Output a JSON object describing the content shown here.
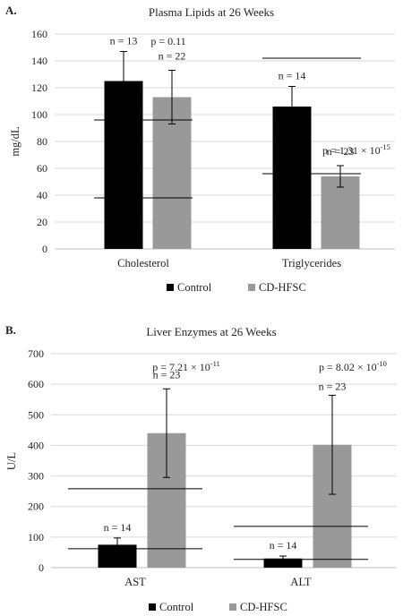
{
  "chart_data": [
    {
      "type": "bar",
      "panel_label": "A.",
      "title": "Plasma Lipids at 26 Weeks",
      "ylabel": "mg/dL",
      "ylim": [
        0,
        160
      ],
      "yticks": [
        "0",
        "20",
        "40",
        "60",
        "80",
        "100",
        "120",
        "140",
        "160"
      ],
      "categories": [
        "Cholesterol",
        "Triglycerides"
      ],
      "series": [
        {
          "name": "Control",
          "color": "#000000",
          "values": [
            125,
            106
          ],
          "error": [
            22,
            15
          ],
          "n_labels": [
            "n = 13",
            "n = 14"
          ]
        },
        {
          "name": "CD-HFSC",
          "color": "#999999",
          "values": [
            113,
            54
          ],
          "error": [
            20,
            8
          ],
          "n_labels": [
            "n = 22",
            "n = 23"
          ]
        }
      ],
      "p_values": [
        {
          "category": "Cholesterol",
          "text": "p = 0.11",
          "exp": ""
        },
        {
          "category": "Triglycerides",
          "text": "p = 1.31 × 10",
          "exp": "-15"
        }
      ],
      "reference_lines": [
        {
          "category": "Cholesterol",
          "values": [
            96,
            38
          ]
        },
        {
          "category": "Triglycerides",
          "values": [
            142,
            56
          ]
        }
      ],
      "legend": [
        "Control",
        "CD-HFSC"
      ],
      "legend_position": "bottom",
      "grid": true
    },
    {
      "type": "bar",
      "panel_label": "B.",
      "title": "Liver Enzymes at 26 Weeks",
      "ylabel": "U/L",
      "ylim": [
        0,
        700
      ],
      "yticks": [
        "0",
        "100",
        "200",
        "300",
        "400",
        "500",
        "600",
        "700"
      ],
      "categories": [
        "AST",
        "ALT"
      ],
      "series": [
        {
          "name": "Control",
          "color": "#000000",
          "values": [
            75,
            30
          ],
          "error": [
            22,
            8
          ],
          "n_labels": [
            "n = 14",
            "n = 14"
          ]
        },
        {
          "name": "CD-HFSC",
          "color": "#999999",
          "values": [
            440,
            402
          ],
          "error": [
            145,
            162
          ],
          "n_labels": [
            "n = 23",
            "n = 23"
          ]
        }
      ],
      "p_values": [
        {
          "category": "AST",
          "text": "p = 7.21 × 10",
          "exp": "-11"
        },
        {
          "category": "ALT",
          "text": "p = 8.02 × 10",
          "exp": "-10"
        }
      ],
      "reference_lines": [
        {
          "category": "AST",
          "values": [
            258,
            62
          ]
        },
        {
          "category": "ALT",
          "values": [
            135,
            27
          ]
        }
      ],
      "legend": [
        "Control",
        "CD-HFSC"
      ],
      "legend_position": "bottom",
      "grid": true
    }
  ]
}
